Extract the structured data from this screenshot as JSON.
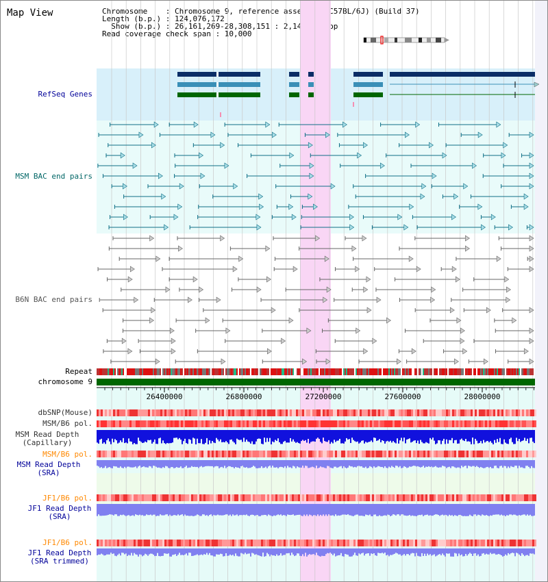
{
  "title": "Map View",
  "info": {
    "line1": "Chromosome    : Chromosome 9, reference assembly (C57BL/6J) (Build 37)",
    "line2": "Length (b.p.) : 124,076,172",
    "line3": "  Show (b.p.) : 26,161,269-28,308,151 : 2,146,883 bp",
    "line4": "Read coverage check span : 10,000"
  },
  "tracks": {
    "refseq": {
      "label": "RefSeq Genes",
      "color": "#000099"
    },
    "msm_bac": {
      "label": "MSM BAC end pairs",
      "color": "#006666"
    },
    "b6n_bac": {
      "label": "B6N BAC end pairs",
      "color": "#555555"
    },
    "repeat": {
      "label": "Repeat"
    },
    "chromosome": {
      "label": "chromosome 9"
    },
    "dbsnp": {
      "label": "dbSNP(Mouse)"
    },
    "msm_b6_pol_1": {
      "label": "MSM/B6 pol."
    },
    "msm_depth_cap": {
      "label": "MSM Read Depth\n(Capillary)"
    },
    "msm_b6_pol_2": {
      "label": "MSM/B6 pol.",
      "color": "#ff8800"
    },
    "msm_depth_sra": {
      "label": "MSM Read Depth\n(SRA)",
      "color": "#000099"
    },
    "jf1_b6_pol_1": {
      "label": "JF1/B6 pol.",
      "color": "#ff8800"
    },
    "jf1_depth_sra": {
      "label": "JF1 Read Depth\n(SRA)",
      "color": "#000099"
    },
    "jf1_b6_pol_2": {
      "label": "JF1/B6 pol.",
      "color": "#ff8800"
    },
    "jf1_depth_trim": {
      "label": "JF1 Read Depth\n(SRA trimmed)",
      "color": "#000099"
    }
  },
  "axis": {
    "ticks": [
      "26400000",
      "26800000",
      "27200000",
      "27600000",
      "28000000"
    ]
  },
  "colors": {
    "highlight": "#f9d6f5",
    "refseq_bg": "#d8f0fa",
    "bac_bg": "#e9fbfa",
    "gene_dark": "#0a2d66",
    "gene_mid": "#3a8fb7",
    "gene_green": "#006600",
    "depth_blue": "#1111dd",
    "depth_light": "#8080f0"
  }
}
